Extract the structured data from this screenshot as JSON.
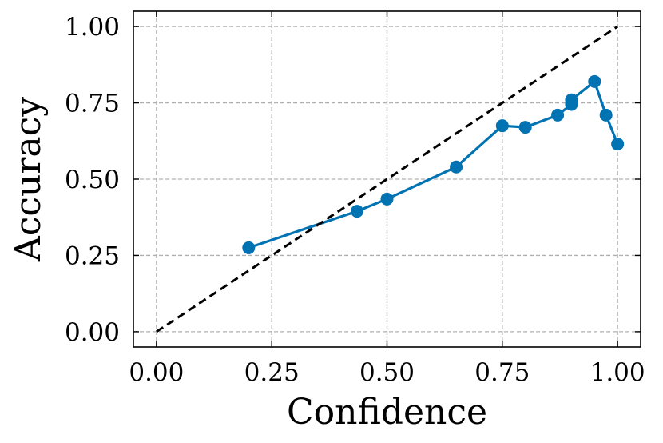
{
  "chart_data": {
    "type": "line",
    "title": "",
    "xlabel": "Confidence",
    "ylabel": "Accuracy",
    "xlim": [
      -0.05,
      1.05
    ],
    "ylim": [
      -0.05,
      1.05
    ],
    "xticks": [
      0.0,
      0.25,
      0.5,
      0.75,
      1.0
    ],
    "xtick_labels": [
      "0.00",
      "0.25",
      "0.50",
      "0.75",
      "1.00"
    ],
    "yticks": [
      0.0,
      0.25,
      0.5,
      0.75,
      1.0
    ],
    "ytick_labels": [
      "0.00",
      "0.25",
      "0.50",
      "0.75",
      "1.00"
    ],
    "grid": true,
    "series": [
      {
        "color": "#0173b2",
        "style": "solid-with-circle-markers",
        "x": [
          0.2,
          0.435,
          0.5,
          0.65,
          0.75,
          0.8,
          0.87,
          0.9,
          0.9,
          0.95,
          0.975,
          1.0
        ],
        "y": [
          0.275,
          0.395,
          0.435,
          0.54,
          0.675,
          0.67,
          0.71,
          0.745,
          0.76,
          0.82,
          0.71,
          0.615
        ]
      },
      {
        "color": "#000000",
        "style": "dashed",
        "x": [
          0.0,
          1.0
        ],
        "y": [
          0.0,
          1.0
        ]
      }
    ]
  }
}
